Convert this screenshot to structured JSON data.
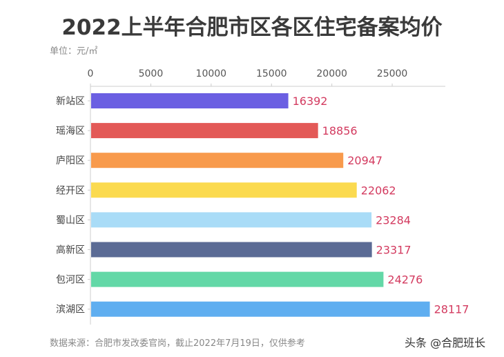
{
  "chart_data": {
    "type": "bar",
    "orientation": "horizontal",
    "title": "2022上半年合肥市区各区住宅备案均价",
    "unit_label": "单位：元/㎡",
    "categories": [
      "新站区",
      "瑶海区",
      "庐阳区",
      "经开区",
      "蜀山区",
      "高新区",
      "包河区",
      "滨湖区"
    ],
    "values": [
      16392,
      18856,
      20947,
      22062,
      23284,
      23317,
      24276,
      28117
    ],
    "colors": [
      "#6b5fe2",
      "#e35957",
      "#f89a4c",
      "#fbda4f",
      "#a9dcf7",
      "#5b6b95",
      "#63d8a7",
      "#5faef0"
    ],
    "value_label_color": "#d33a5f",
    "xaxis": {
      "ticks": [
        0,
        5000,
        10000,
        15000,
        20000,
        25000
      ],
      "range": [
        0,
        29400
      ],
      "position": "top"
    },
    "grid": false,
    "legend": "none"
  },
  "footer": {
    "source": "数据来源：合肥市发改委官岗，截止2022年7月19日，仅供参考",
    "watermark": "头条 @合肥班长"
  }
}
